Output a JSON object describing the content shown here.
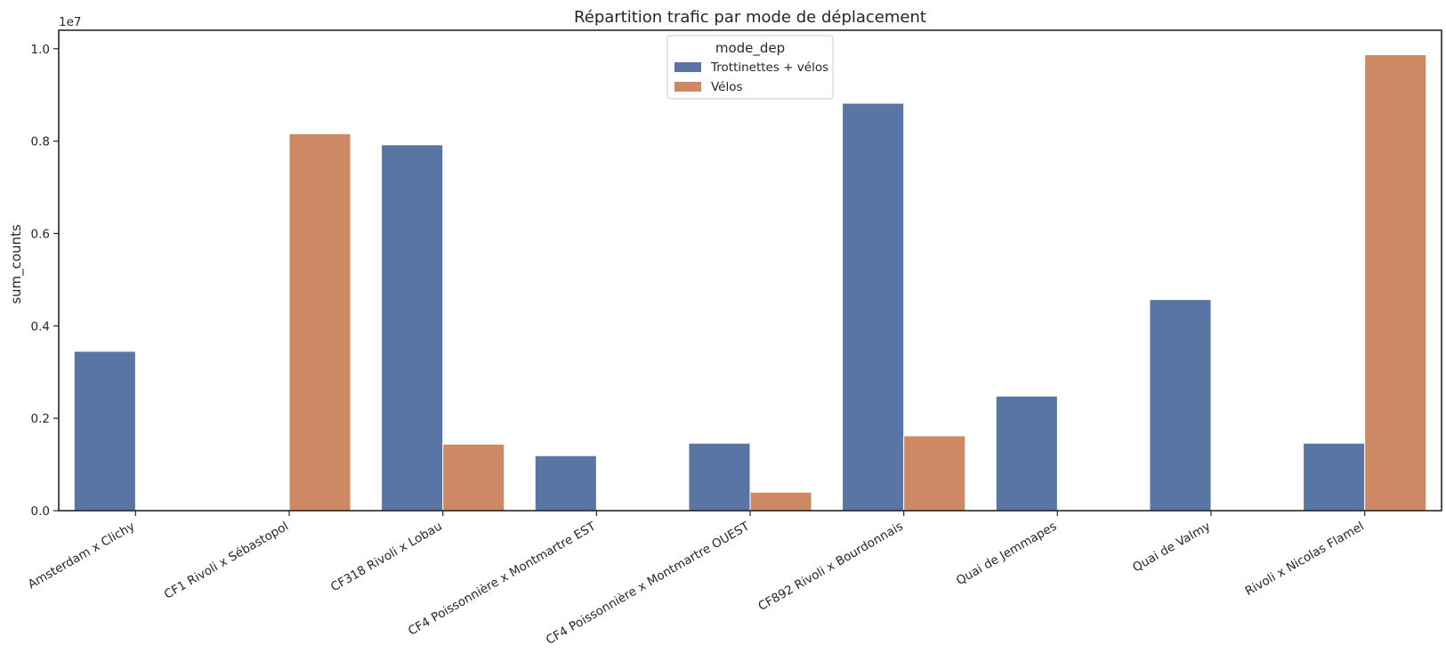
{
  "chart_data": {
    "type": "bar",
    "title": "Répartition trafic par mode de déplacement",
    "xlabel": "",
    "ylabel": "sum_counts",
    "scale_label": "1e7",
    "ylim": [
      0,
      10400000
    ],
    "yticks": [
      {
        "value": 0,
        "label": "0.0"
      },
      {
        "value": 2000000,
        "label": "0.2"
      },
      {
        "value": 4000000,
        "label": "0.4"
      },
      {
        "value": 6000000,
        "label": "0.6"
      },
      {
        "value": 8000000,
        "label": "0.8"
      },
      {
        "value": 10000000,
        "label": "1.0"
      }
    ],
    "categories": [
      "Amsterdam x Clichy",
      "CF1 Rivoli x Sébastopol",
      "CF318 Rivoli x Lobau",
      "CF4 Poissonnière x Montmartre EST",
      "CF4 Poissonnière x Montmartre OUEST",
      "CF892 Rivoli x Bourdonnais",
      "Quai de Jemmapes",
      "Quai de Valmy",
      "Rivoli x Nicolas Flamel"
    ],
    "legend": {
      "title": "mode_dep",
      "position": "upper-center"
    },
    "grid": false,
    "series": [
      {
        "name": "Trottinettes + vélos",
        "color": "#5975a4",
        "values": [
          3450000,
          null,
          7920000,
          1190000,
          1460000,
          8820000,
          2480000,
          4570000,
          1460000
        ]
      },
      {
        "name": "Vélos",
        "color": "#cc8963",
        "values": [
          null,
          8160000,
          1440000,
          null,
          400000,
          1620000,
          null,
          null,
          9870000
        ]
      }
    ]
  }
}
